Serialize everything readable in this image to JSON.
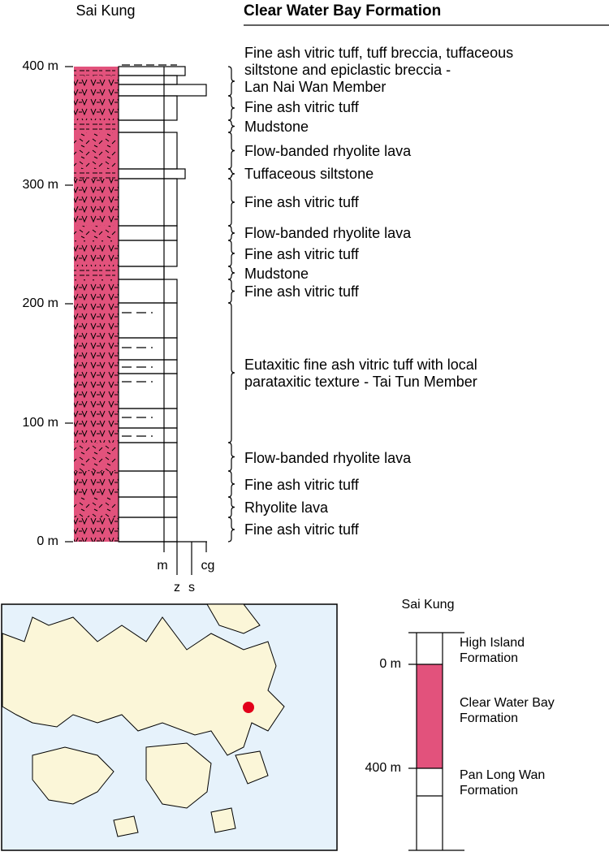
{
  "main_column": {
    "location": "Sai Kung",
    "title": "Clear Water Bay Formation",
    "depth_labels": [
      "400 m",
      "300 m",
      "200 m",
      "100 m",
      "0 m"
    ],
    "grain_size_labels": [
      "m",
      "z",
      "s",
      "cg"
    ],
    "units": [
      {
        "lines": [
          "Fine ash vitric tuff, tuff breccia, tuffaceous",
          "siltstone and epiclastic breccia -",
          "Lan Nai Wan Member"
        ]
      },
      {
        "lines": [
          "Fine ash vitric tuff"
        ]
      },
      {
        "lines": [
          "Mudstone"
        ]
      },
      {
        "lines": [
          "Flow-banded rhyolite lava"
        ]
      },
      {
        "lines": [
          "Tuffaceous siltstone"
        ]
      },
      {
        "lines": [
          "Fine ash vitric tuff"
        ]
      },
      {
        "lines": [
          "Flow-banded rhyolite lava"
        ]
      },
      {
        "lines": [
          "Fine ash vitric tuff"
        ]
      },
      {
        "lines": [
          "Mudstone"
        ]
      },
      {
        "lines": [
          "Fine ash vitric tuff"
        ]
      },
      {
        "lines": [
          "Eutaxitic fine ash vitric tuff with local",
          "parataxitic texture - Tai Tun Member"
        ]
      },
      {
        "lines": [
          "Flow-banded rhyolite lava"
        ]
      },
      {
        "lines": [
          "Fine ash vitric tuff"
        ]
      },
      {
        "lines": [
          "Rhyolite lava"
        ]
      },
      {
        "lines": [
          "Fine ash vitric tuff"
        ]
      }
    ]
  },
  "inset_column": {
    "location": "Sai Kung",
    "depth_labels": [
      "0 m",
      "400 m"
    ],
    "formations": [
      {
        "lines": [
          "High Island",
          "Formation"
        ]
      },
      {
        "lines": [
          "Clear Water Bay",
          "Formation"
        ]
      },
      {
        "lines": [
          "Pan Long Wan",
          "Formation"
        ]
      }
    ]
  }
}
